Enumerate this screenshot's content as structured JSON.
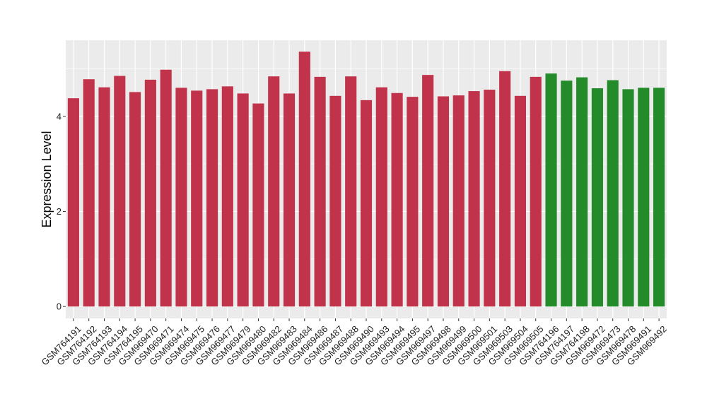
{
  "chart_data": {
    "type": "bar",
    "title": "",
    "xlabel": "",
    "ylabel": "Expression Level",
    "ylim": [
      -0.25,
      5.6
    ],
    "yticks": [
      0,
      2,
      4
    ],
    "grid": true,
    "legend": "none",
    "colors": {
      "group1": "#c1334a",
      "group2": "#238b2a",
      "panel": "#ebebeb",
      "grid": "#ffffff"
    },
    "categories": [
      "GSM764191",
      "GSM764192",
      "GSM764193",
      "GSM764194",
      "GSM764195",
      "GSM969470",
      "GSM969471",
      "GSM969474",
      "GSM969475",
      "GSM969476",
      "GSM969477",
      "GSM969479",
      "GSM969480",
      "GSM969482",
      "GSM969483",
      "GSM969484",
      "GSM969486",
      "GSM969487",
      "GSM969488",
      "GSM969490",
      "GSM969493",
      "GSM969494",
      "GSM969495",
      "GSM969497",
      "GSM969498",
      "GSM969499",
      "GSM969500",
      "GSM969501",
      "GSM969503",
      "GSM969504",
      "GSM969505",
      "GSM764196",
      "GSM764197",
      "GSM764198",
      "GSM969472",
      "GSM969473",
      "GSM969478",
      "GSM969491",
      "GSM969492"
    ],
    "values": [
      4.38,
      4.78,
      4.61,
      4.85,
      4.51,
      4.77,
      4.98,
      4.6,
      4.54,
      4.57,
      4.63,
      4.48,
      4.27,
      4.84,
      4.48,
      5.36,
      4.83,
      4.43,
      4.84,
      4.34,
      4.61,
      4.49,
      4.41,
      4.87,
      4.42,
      4.44,
      4.53,
      4.56,
      4.95,
      4.43,
      4.83,
      4.9,
      4.75,
      4.82,
      4.59,
      4.76,
      4.57,
      4.6,
      4.6
    ],
    "groups": [
      "group1",
      "group1",
      "group1",
      "group1",
      "group1",
      "group1",
      "group1",
      "group1",
      "group1",
      "group1",
      "group1",
      "group1",
      "group1",
      "group1",
      "group1",
      "group1",
      "group1",
      "group1",
      "group1",
      "group1",
      "group1",
      "group1",
      "group1",
      "group1",
      "group1",
      "group1",
      "group1",
      "group1",
      "group1",
      "group1",
      "group1",
      "group2",
      "group2",
      "group2",
      "group2",
      "group2",
      "group2",
      "group2",
      "group2"
    ]
  }
}
